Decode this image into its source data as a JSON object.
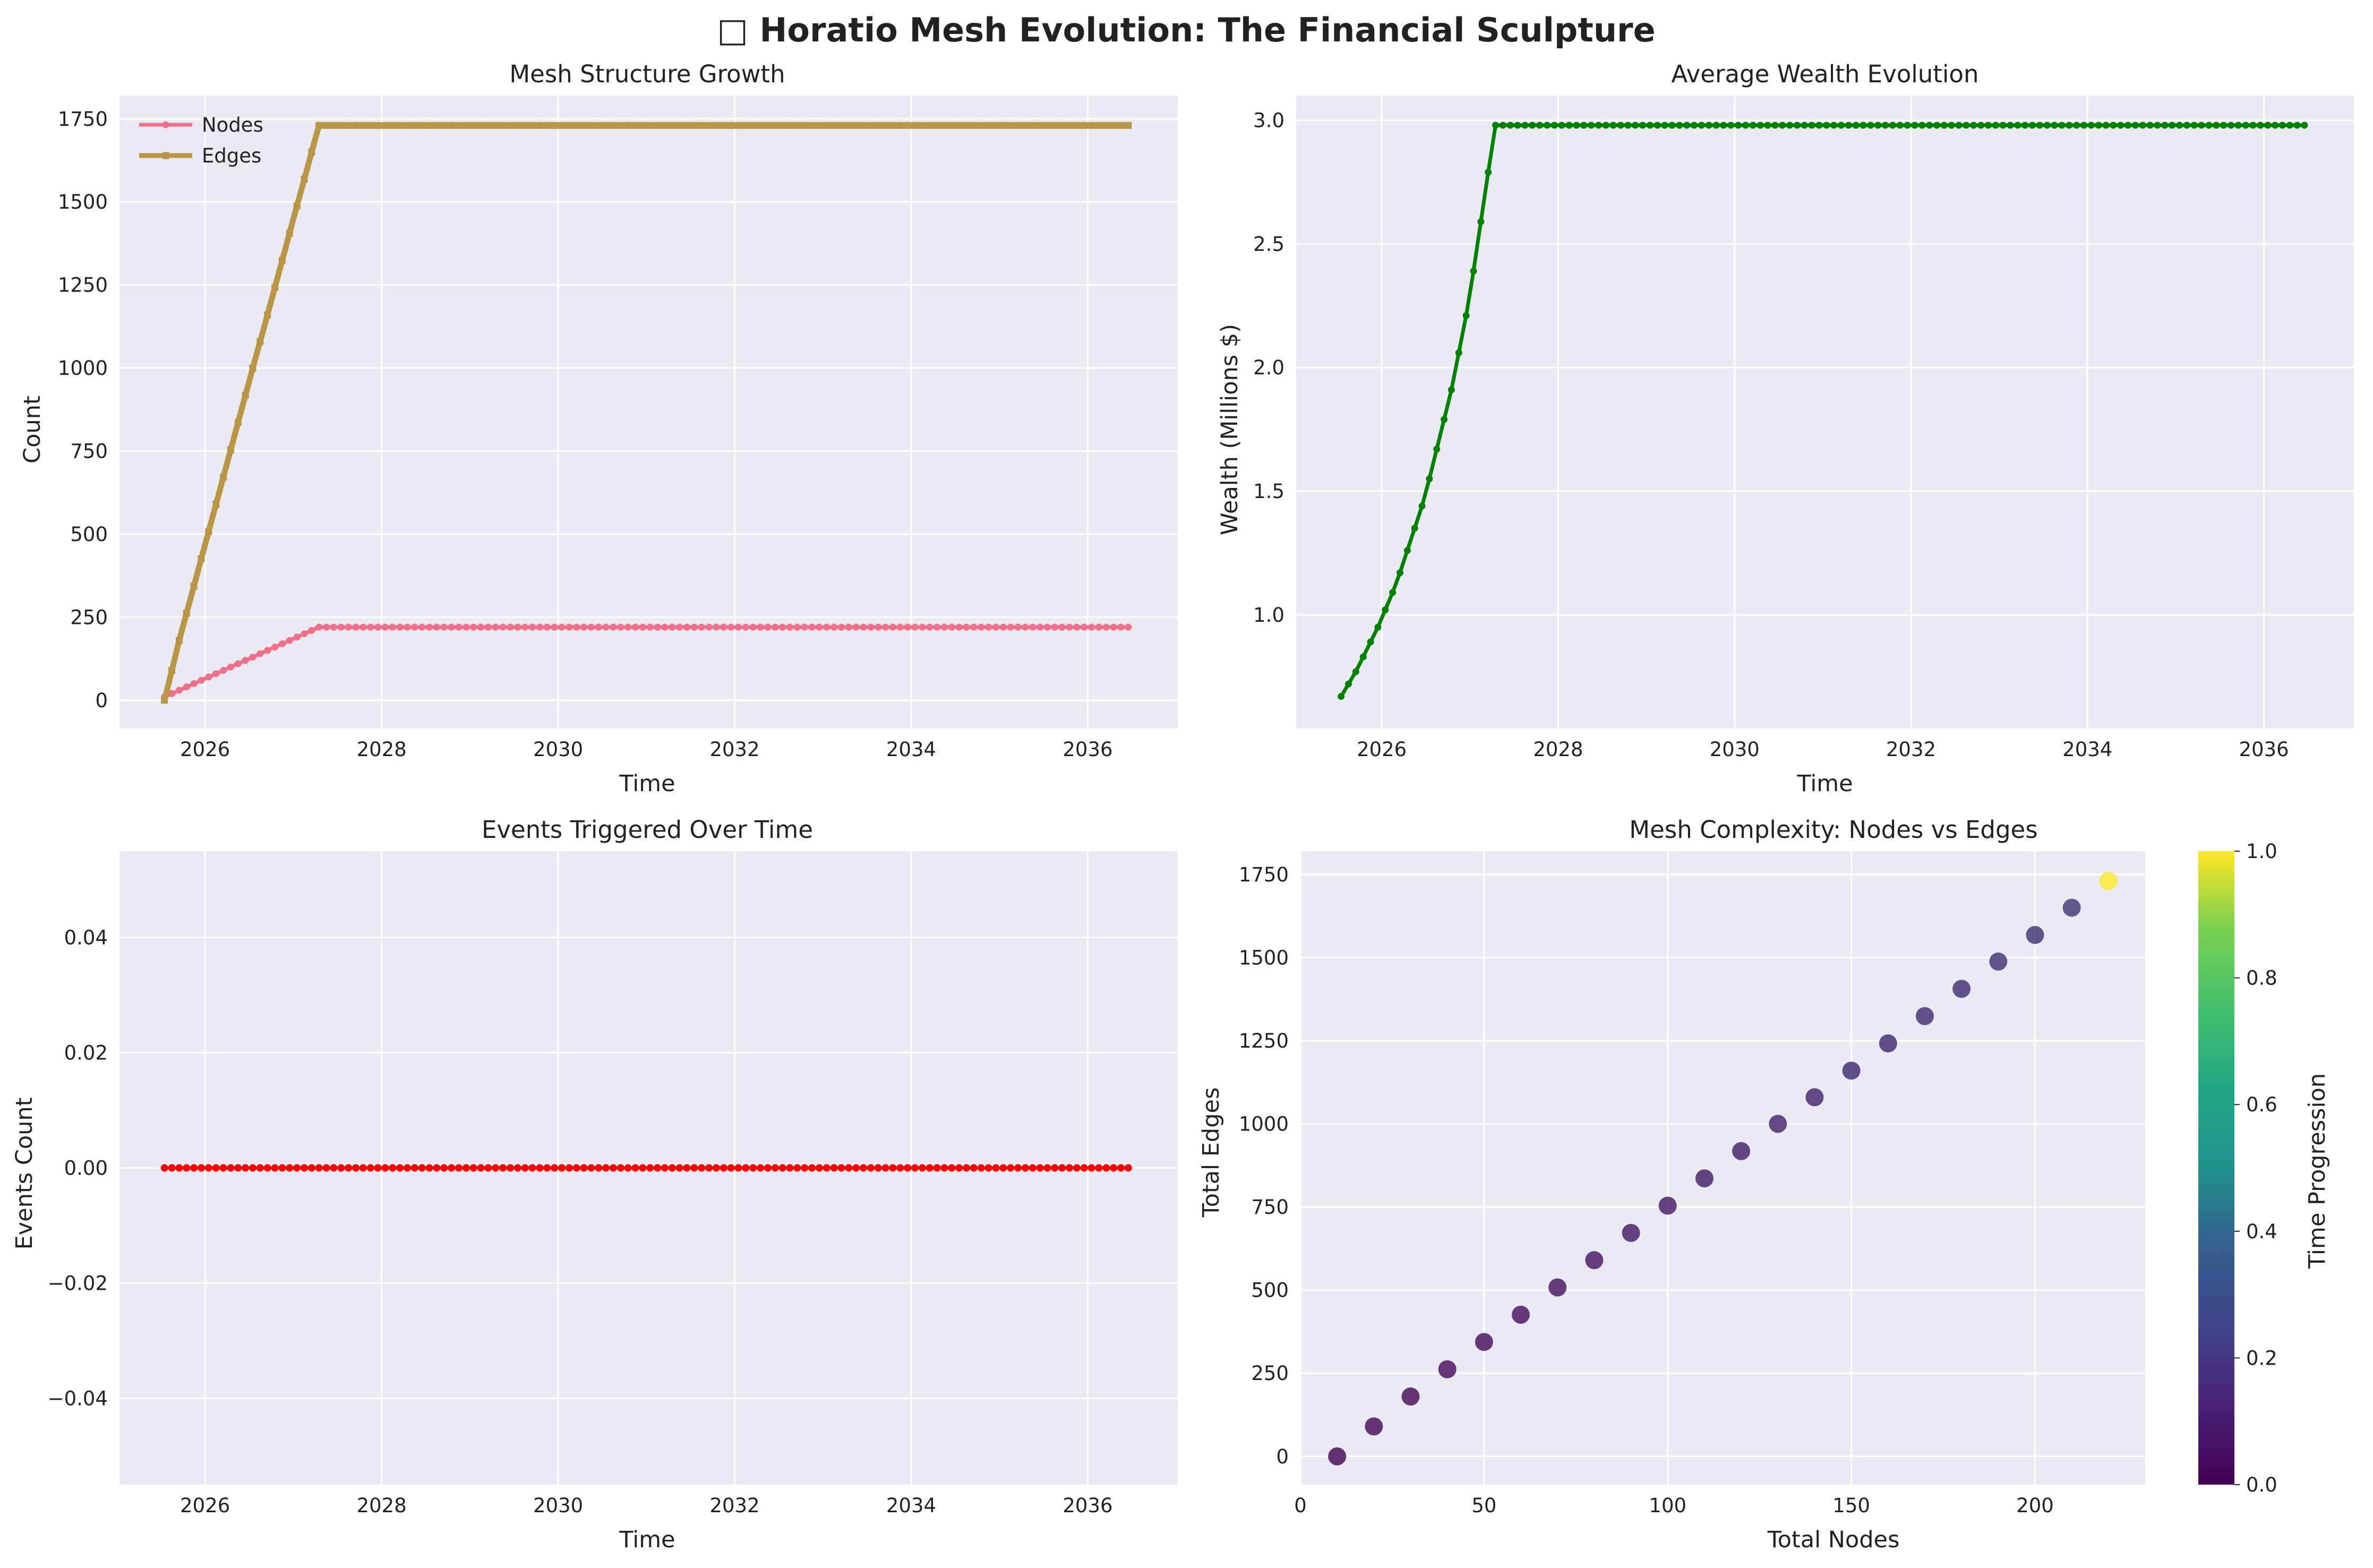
{
  "suptitle": "□ Horatio Mesh Evolution: The Financial Sculpture",
  "chart_data": [
    {
      "type": "line",
      "title": "Mesh Structure Growth",
      "xlabel": "Time",
      "ylabel": "Count",
      "xlim": [
        2025.03,
        2037.02
      ],
      "ylim": [
        -85,
        1820
      ],
      "xticks": [
        2026,
        2028,
        2030,
        2032,
        2034,
        2036
      ],
      "yticks": [
        0,
        250,
        500,
        750,
        1000,
        1250,
        1500,
        1750
      ],
      "legend": "top-left",
      "grid": true,
      "series": [
        {
          "name": "Nodes",
          "color": "#f0708a",
          "marker": "circle",
          "x_start": 2025.54,
          "x_end": 2036.46,
          "ramp_points": 21,
          "start": 10,
          "plateau": 220,
          "total_points": 132
        },
        {
          "name": "Edges",
          "color": "#b89645",
          "marker": "square",
          "x_start": 2025.54,
          "x_end": 2036.46,
          "ramp_points": 21,
          "start": 0,
          "plateau": 1730,
          "total_points": 132,
          "values_ramp": [
            0,
            90,
            180,
            262,
            344,
            426,
            508,
            590,
            672,
            754,
            836,
            918,
            1000,
            1080,
            1160,
            1242,
            1324,
            1406,
            1488,
            1568,
            1650,
            1730
          ]
        }
      ]
    },
    {
      "type": "line",
      "title": "Average Wealth Evolution",
      "xlabel": "Time",
      "ylabel": "Wealth (Millions $)",
      "xlim": [
        2025.03,
        2037.02
      ],
      "ylim": [
        0.54,
        3.1
      ],
      "xticks": [
        2026,
        2028,
        2030,
        2032,
        2034,
        2036
      ],
      "yticks": [
        1.0,
        1.5,
        2.0,
        2.5,
        3.0
      ],
      "grid": true,
      "series": [
        {
          "name": "",
          "color": "#008000",
          "marker": "circle",
          "x_start": 2025.54,
          "x_end": 2036.46,
          "total_points": 132,
          "plateau": 2.98,
          "values_ramp": [
            0.67,
            0.72,
            0.77,
            0.83,
            0.89,
            0.95,
            1.02,
            1.09,
            1.17,
            1.26,
            1.35,
            1.44,
            1.55,
            1.67,
            1.79,
            1.91,
            2.06,
            2.21,
            2.39,
            2.59,
            2.79,
            2.98
          ]
        }
      ]
    },
    {
      "type": "line",
      "title": "Events Triggered Over Time",
      "xlabel": "Time",
      "ylabel": "Events Count",
      "xlim": [
        2025.03,
        2037.02
      ],
      "ylim": [
        -0.055,
        0.055
      ],
      "xticks": [
        2026,
        2028,
        2030,
        2032,
        2034,
        2036
      ],
      "yticks": [
        -0.04,
        -0.02,
        0.0,
        0.02,
        0.04
      ],
      "grid": true,
      "series": [
        {
          "name": "",
          "color": "#ff0000",
          "marker": "circle",
          "x_start": 2025.54,
          "x_end": 2036.46,
          "total_points": 132,
          "value": 0.0
        }
      ]
    },
    {
      "type": "scatter",
      "title": "Mesh Complexity: Nodes vs Edges",
      "xlabel": "Total Nodes",
      "ylabel": "Total Edges",
      "xlim": [
        0,
        230
      ],
      "ylim": [
        -85,
        1820
      ],
      "xticks": [
        0,
        50,
        100,
        150,
        200
      ],
      "yticks": [
        0,
        250,
        500,
        750,
        1000,
        1250,
        1500,
        1750
      ],
      "grid": true,
      "colorbar": {
        "label": "Time Progression",
        "ticks": [
          0.0,
          0.2,
          0.4,
          0.6,
          0.8,
          1.0
        ],
        "colormap": "viridis"
      },
      "points": {
        "x": [
          10,
          20,
          30,
          40,
          50,
          60,
          70,
          80,
          90,
          100,
          110,
          120,
          130,
          140,
          150,
          160,
          170,
          180,
          190,
          200,
          210,
          220
        ],
        "y": [
          0,
          90,
          180,
          262,
          344,
          426,
          508,
          590,
          672,
          754,
          836,
          918,
          1000,
          1080,
          1160,
          1242,
          1324,
          1406,
          1488,
          1568,
          1650,
          1730
        ],
        "t": [
          0.0,
          0.008,
          0.015,
          0.023,
          0.031,
          0.038,
          0.046,
          0.053,
          0.061,
          0.069,
          0.076,
          0.084,
          0.092,
          0.099,
          0.107,
          0.115,
          0.122,
          0.13,
          0.137,
          0.145,
          0.153,
          1.0
        ]
      }
    }
  ],
  "colors": {
    "axes_bg": "#eaeaf2",
    "grid": "#ffffff"
  }
}
